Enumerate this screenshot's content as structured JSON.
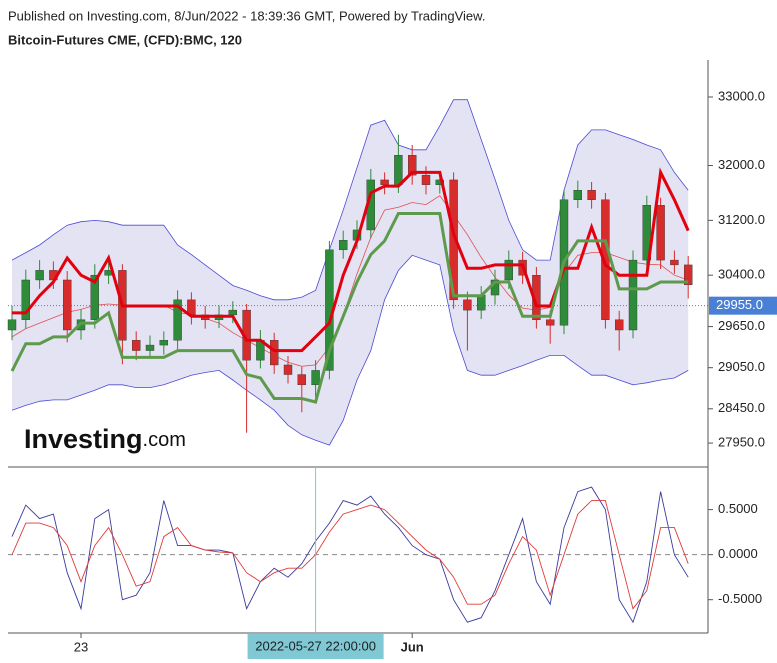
{
  "header": {
    "published": "Published on Investing.com, 8/Jun/2022 - 18:39:36 GMT, Powered by TradingView.",
    "symbol": "Bitcoin-Futures CME, (CFD):BMC, 120"
  },
  "logo": {
    "brand": "Investing",
    "suffix": ".com"
  },
  "crosshair_label": "2022-05-27 22:00:00",
  "chart_data": [
    {
      "type": "candlestick",
      "categories": [
        null,
        null,
        null,
        null,
        null,
        "23",
        null,
        null,
        null,
        null,
        null,
        null,
        null,
        null,
        null,
        null,
        null,
        null,
        null,
        null,
        null,
        null,
        null,
        null,
        null,
        null,
        null,
        null,
        null,
        "Jun",
        null,
        null,
        null,
        null,
        null,
        null,
        null,
        null,
        null,
        null,
        null,
        null,
        null,
        null,
        null,
        null,
        null,
        null,
        null,
        null
      ],
      "open": [
        29600,
        29750,
        30330,
        30470,
        30330,
        29600,
        29750,
        30400,
        30470,
        29450,
        29300,
        29380,
        29450,
        30040,
        29820,
        29750,
        29820,
        29890,
        29160,
        29450,
        29090,
        28950,
        28800,
        29010,
        30770,
        30910,
        31060,
        31790,
        31720,
        32150,
        31860,
        31720,
        31790,
        30040,
        29890,
        30110,
        30330,
        30620,
        30400,
        29750,
        29670,
        31500,
        31640,
        31500,
        29750,
        29600,
        30620,
        31420,
        30620,
        30550
      ],
      "high": [
        29950,
        30480,
        30620,
        30600,
        30460,
        29900,
        30560,
        30600,
        30560,
        29580,
        29520,
        29580,
        30180,
        30150,
        29950,
        29960,
        30020,
        29980,
        29600,
        29560,
        29220,
        29060,
        29160,
        30900,
        31050,
        31200,
        31950,
        31900,
        32450,
        32300,
        31990,
        31920,
        31900,
        30160,
        30240,
        30480,
        30760,
        30740,
        30520,
        29880,
        31650,
        31780,
        31760,
        31600,
        29880,
        30760,
        31560,
        31530,
        30760,
        30680
      ],
      "low": [
        29450,
        29620,
        30200,
        30200,
        29420,
        29460,
        29620,
        30270,
        29100,
        29160,
        29180,
        29240,
        29320,
        29680,
        29620,
        29630,
        29700,
        28100,
        29040,
        28960,
        28820,
        28400,
        28620,
        28880,
        30640,
        30780,
        30940,
        31580,
        31600,
        31720,
        31580,
        31590,
        29910,
        29300,
        29760,
        29970,
        30200,
        30270,
        29620,
        29400,
        29540,
        31380,
        31370,
        29620,
        29300,
        29480,
        30500,
        30490,
        30420,
        30060
      ],
      "close": [
        29750,
        30330,
        30470,
        30330,
        29600,
        29750,
        30400,
        30470,
        29450,
        29300,
        29380,
        29450,
        30040,
        29820,
        29750,
        29820,
        29890,
        29160,
        29450,
        29090,
        28950,
        28800,
        29010,
        30770,
        30910,
        31060,
        31790,
        31720,
        32150,
        31860,
        31720,
        31790,
        30040,
        29890,
        30110,
        30330,
        30620,
        30400,
        29750,
        29670,
        31500,
        31640,
        31500,
        29750,
        29600,
        30620,
        31420,
        30620,
        30550,
        30260
      ],
      "up_color": "#2e8b3a",
      "down_color": "#d62c2c",
      "bands": {
        "upper": [
          30620,
          30730,
          30840,
          30990,
          31130,
          31180,
          31200,
          31180,
          31130,
          31130,
          31130,
          31130,
          30840,
          30700,
          30550,
          30400,
          30250,
          30180,
          30100,
          30040,
          30040,
          30080,
          30180,
          30770,
          31350,
          31970,
          32590,
          32660,
          32300,
          32230,
          32230,
          32580,
          32960,
          32960,
          32380,
          31800,
          31200,
          30770,
          30620,
          30620,
          31640,
          32300,
          32520,
          32520,
          32450,
          32380,
          32300,
          32230,
          31900,
          31640
        ],
        "middle": [
          29500,
          29620,
          29700,
          29780,
          29860,
          29900,
          29960,
          29980,
          29960,
          29940,
          29940,
          29960,
          29860,
          29820,
          29770,
          29700,
          29560,
          29450,
          29340,
          29230,
          29130,
          29070,
          29090,
          29350,
          29810,
          30420,
          30950,
          31350,
          31390,
          31460,
          31430,
          31560,
          31280,
          30990,
          30660,
          30370,
          30110,
          29920,
          29890,
          29930,
          30430,
          30690,
          30730,
          30730,
          30660,
          30590,
          30560,
          30550,
          30400,
          30330
        ],
        "lower": [
          28430,
          28500,
          28560,
          28580,
          28580,
          28650,
          28720,
          28800,
          28800,
          28760,
          28760,
          28800,
          28870,
          28940,
          28980,
          29010,
          28870,
          28720,
          28580,
          28430,
          28210,
          28070,
          27990,
          27920,
          28280,
          28870,
          29300,
          30040,
          30470,
          30690,
          30620,
          30550,
          29600,
          29010,
          28940,
          28940,
          29010,
          29080,
          29160,
          29230,
          29230,
          29080,
          28940,
          28940,
          28870,
          28800,
          28830,
          28870,
          28900,
          29010
        ],
        "color": "#4b4bd6",
        "fill": "#e3e3f3",
        "middle_color": "#e05050"
      },
      "lines": [
        {
          "color": "#e3000f",
          "values": [
            29850,
            29850,
            30100,
            30300,
            30650,
            30400,
            30300,
            30650,
            29950,
            29950,
            29950,
            29950,
            29950,
            29800,
            29800,
            29800,
            29800,
            29450,
            29450,
            29300,
            29300,
            29300,
            29500,
            29700,
            30400,
            30900,
            31600,
            31700,
            31700,
            31900,
            31900,
            31900,
            31000,
            30500,
            30500,
            30550,
            30550,
            30550,
            29950,
            29950,
            30500,
            30500,
            31100,
            30550,
            30400,
            30400,
            30400,
            31900,
            31500,
            31050
          ]
        },
        {
          "color": "#5e9a4c",
          "values": [
            29000,
            29400,
            29400,
            29500,
            29500,
            29700,
            29700,
            29850,
            29200,
            29200,
            29200,
            29200,
            29300,
            29300,
            29300,
            29300,
            29300,
            28950,
            28900,
            28600,
            28600,
            28600,
            28550,
            29300,
            29800,
            30300,
            30700,
            30900,
            31300,
            31300,
            31300,
            31300,
            30100,
            30100,
            30100,
            30300,
            30300,
            29800,
            29800,
            29800,
            30600,
            30900,
            30900,
            30900,
            30200,
            30200,
            30200,
            30300,
            30300,
            30300
          ]
        }
      ],
      "last_price": {
        "value": 29955,
        "label": "29955.0"
      },
      "last_price_color": "#4a7fd6",
      "ylim": [
        27630,
        33540
      ],
      "yticks": [
        {
          "value": 33000,
          "label": "33000.0"
        },
        {
          "value": 32000,
          "label": "32000.0"
        },
        {
          "value": 31200,
          "label": "31200.0"
        },
        {
          "value": 30400,
          "label": "30400.0"
        },
        {
          "value": 29650,
          "label": "29650.0"
        },
        {
          "value": 29050,
          "label": "29050.0"
        },
        {
          "value": 28450,
          "label": "28450.0"
        },
        {
          "value": 27950,
          "label": "27950.0"
        }
      ]
    },
    {
      "type": "line",
      "series": [
        {
          "color": "#3a3a9e",
          "values": [
            0.2,
            0.55,
            0.4,
            0.45,
            -0.2,
            -0.6,
            0.4,
            0.5,
            -0.5,
            -0.45,
            -0.2,
            0.6,
            0.1,
            0.1,
            0.05,
            0.05,
            0.02,
            -0.6,
            -0.3,
            -0.15,
            -0.25,
            -0.1,
            0.15,
            0.35,
            0.6,
            0.55,
            0.65,
            0.45,
            0.3,
            0.1,
            0.0,
            -0.05,
            -0.5,
            -0.75,
            -0.7,
            -0.4,
            0.0,
            0.4,
            -0.3,
            -0.55,
            0.3,
            0.7,
            0.75,
            0.5,
            -0.5,
            -0.75,
            -0.3,
            0.7,
            0.0,
            -0.25
          ]
        },
        {
          "color": "#e03a3a",
          "values": [
            0.0,
            0.35,
            0.35,
            0.3,
            0.1,
            -0.3,
            0.1,
            0.3,
            0.0,
            -0.35,
            -0.3,
            0.2,
            0.3,
            0.1,
            0.05,
            0.03,
            0.02,
            -0.2,
            -0.3,
            -0.2,
            -0.15,
            -0.15,
            0.0,
            0.25,
            0.45,
            0.5,
            0.55,
            0.5,
            0.35,
            0.2,
            0.05,
            -0.05,
            -0.25,
            -0.55,
            -0.55,
            -0.45,
            -0.1,
            0.2,
            0.05,
            -0.45,
            0.0,
            0.45,
            0.6,
            0.6,
            0.0,
            -0.6,
            -0.4,
            0.3,
            0.3,
            -0.1
          ]
        }
      ],
      "zero_line": true,
      "ylim": [
        -0.87,
        0.94
      ],
      "yticks": [
        {
          "value": 0.5,
          "label": "0.5000"
        },
        {
          "value": 0,
          "label": "0.0000"
        },
        {
          "value": -0.5,
          "label": "-0.5000"
        }
      ]
    }
  ]
}
